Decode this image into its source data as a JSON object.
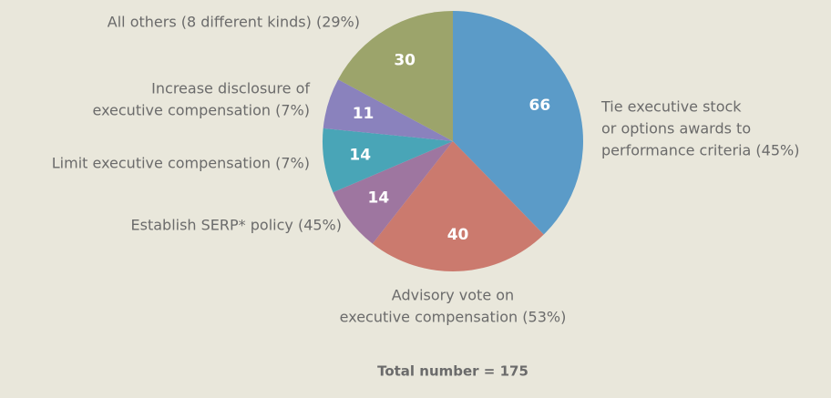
{
  "chart_data": {
    "type": "pie",
    "categories": [
      [
        "Tie executive stock",
        "or options awards to",
        "performance criteria (45%)"
      ],
      [
        "Advisory vote on",
        "executive compensation (53%)"
      ],
      [
        "Establish SERP* policy (45%)"
      ],
      [
        "Limit executive compensation (7%)"
      ],
      [
        "Increase disclosure of",
        "executive compensation (7%)"
      ],
      [
        "All others (8 different kinds) (29%)"
      ]
    ],
    "values": [
      66,
      40,
      14,
      14,
      11,
      30
    ],
    "colors": [
      "#5b9bc8",
      "#cb7a6e",
      "#9e76a0",
      "#49a5b7",
      "#8a82bd",
      "#9ca46b"
    ],
    "total_label": "Total number = 175"
  }
}
